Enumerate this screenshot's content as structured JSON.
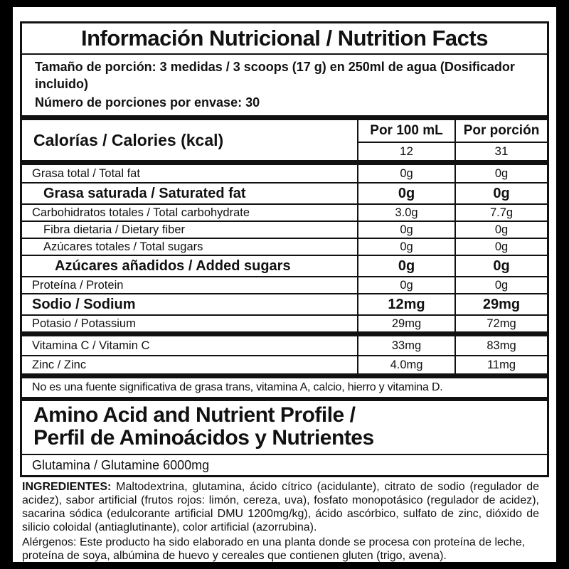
{
  "label": {
    "title": "Información Nutricional / Nutrition Facts",
    "serving_size": "Tamaño de porción: 3 medidas / 3 scoops (17 g) en 250ml de agua (Dosificador incluido)",
    "servings_per_container": "Número de porciones por envase: 30"
  },
  "columns": {
    "per_100ml": "Por 100 mL",
    "per_serving": "Por porción"
  },
  "calories": {
    "label": "Calorías / Calories (kcal)",
    "per_100ml": "12",
    "per_serving": "31"
  },
  "nutrients_main": [
    {
      "label": "Grasa total / Total fat",
      "per_100ml": "0g",
      "per_serving": "0g",
      "emphasis": false,
      "indent": 0
    },
    {
      "label": "Grasa saturada / Saturated fat",
      "per_100ml": "0g",
      "per_serving": "0g",
      "emphasis": true,
      "indent": 1
    },
    {
      "label": "Carbohidratos totales / Total carbohydrate",
      "per_100ml": "3.0g",
      "per_serving": "7.7g",
      "emphasis": false,
      "indent": 0
    },
    {
      "label": "Fibra dietaria / Dietary fiber",
      "per_100ml": "0g",
      "per_serving": "0g",
      "emphasis": false,
      "indent": 1
    },
    {
      "label": "Azúcares totales / Total sugars",
      "per_100ml": "0g",
      "per_serving": "0g",
      "emphasis": false,
      "indent": 1
    },
    {
      "label": "Azúcares añadidos / Added sugars",
      "per_100ml": "0g",
      "per_serving": "0g",
      "emphasis": true,
      "indent": 2
    },
    {
      "label": "Proteína / Protein",
      "per_100ml": "0g",
      "per_serving": "0g",
      "emphasis": false,
      "indent": 0
    },
    {
      "label": "Sodio / Sodium",
      "per_100ml": "12mg",
      "per_serving": "29mg",
      "emphasis": true,
      "indent": 0
    },
    {
      "label": "Potasio / Potassium",
      "per_100ml": "29mg",
      "per_serving": "72mg",
      "emphasis": false,
      "indent": 0
    }
  ],
  "nutrients_micro": [
    {
      "label": "Vitamina C / Vitamin C",
      "per_100ml": "33mg",
      "per_serving": "83mg",
      "emphasis": false,
      "indent": 0
    },
    {
      "label": "Zinc / Zinc",
      "per_100ml": "4.0mg",
      "per_serving": "11mg",
      "emphasis": false,
      "indent": 0
    }
  ],
  "footnote": "No es una fuente significativa de grasa trans, vitamina A, calcio, hierro y vitamina D.",
  "amino_profile": {
    "title_line1": "Amino Acid and Nutrient Profile /",
    "title_line2": "Perfil de Aminoácidos y Nutrientes",
    "glutamine_row": "Glutamina / Glutamine 6000mg"
  },
  "ingredients": {
    "heading": "INGREDIENTES:",
    "body": "Maltodextrina, glutamina, ácido cítrico (acidulante), citrato de sodio (regulador de acidez), sabor artificial (frutos rojos: limón, cereza, uva), fosfato monopotásico (regulador de acidez), sacarina sódica (edulcorante artificial DMU 1200mg/kg), ácido ascórbico, sulfato de zinc, dióxido de silicio coloidal (antiaglutinante), color artificial (azorrubina)."
  },
  "allergens": "Alérgenos: Este producto ha sido elaborado en una planta donde se procesa con proteína de leche, proteína de soya, albúmina de huevo y cereales que contienen gluten (trigo, avena).",
  "colors": {
    "text": "#111111",
    "border": "#111111",
    "background": "#ffffff",
    "frame": "#000000"
  }
}
